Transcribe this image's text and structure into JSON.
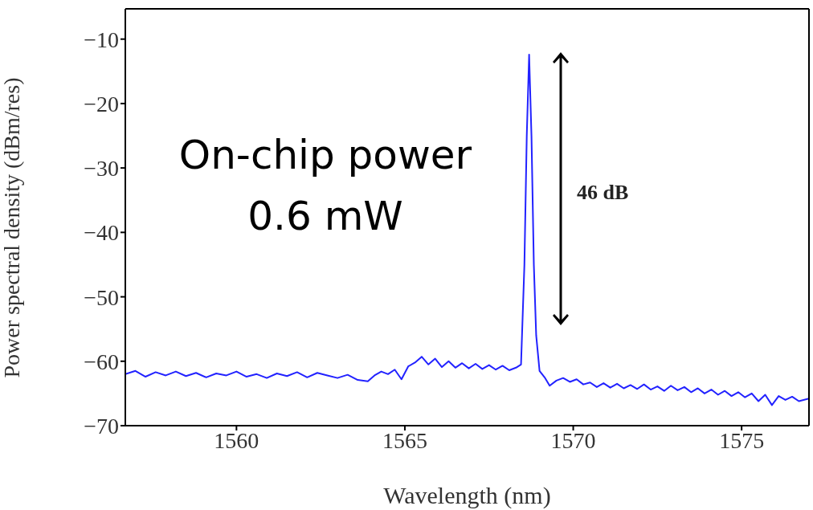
{
  "chart_data": {
    "type": "line",
    "xlabel": "Wavelength (nm)",
    "ylabel": "Power spectral density (dBm/res)",
    "xlim": [
      1556.7,
      1577
    ],
    "xticks": [
      1560,
      1565,
      1570,
      1575
    ],
    "ylim": [
      -70,
      -5.3
    ],
    "yticks": [
      -70,
      -60,
      -50,
      -40,
      -30,
      -20,
      -10
    ],
    "grid": false,
    "legend": false,
    "marker": "none",
    "line_style": "solid",
    "annotations": [
      "On-chip power 0.6 mW",
      "46 dB"
    ],
    "series": [
      {
        "color": "#2222ff",
        "x": [
          1556.7,
          1557.0,
          1557.3,
          1557.6,
          1557.9,
          1558.2,
          1558.5,
          1558.8,
          1559.1,
          1559.4,
          1559.7,
          1560.0,
          1560.3,
          1560.6,
          1560.9,
          1561.2,
          1561.5,
          1561.8,
          1562.1,
          1562.4,
          1562.7,
          1563.0,
          1563.3,
          1563.6,
          1563.9,
          1564.1,
          1564.3,
          1564.5,
          1564.7,
          1564.9,
          1565.1,
          1565.3,
          1565.5,
          1565.7,
          1565.9,
          1566.1,
          1566.3,
          1566.5,
          1566.7,
          1566.9,
          1567.1,
          1567.3,
          1567.5,
          1567.7,
          1567.9,
          1568.1,
          1568.3,
          1568.45,
          1568.55,
          1568.62,
          1568.69,
          1568.76,
          1568.83,
          1568.9,
          1569.0,
          1569.15,
          1569.3,
          1569.5,
          1569.7,
          1569.9,
          1570.1,
          1570.3,
          1570.5,
          1570.7,
          1570.9,
          1571.1,
          1571.3,
          1571.5,
          1571.7,
          1571.9,
          1572.1,
          1572.3,
          1572.5,
          1572.7,
          1572.9,
          1573.1,
          1573.3,
          1573.5,
          1573.7,
          1573.9,
          1574.1,
          1574.3,
          1574.5,
          1574.7,
          1574.9,
          1575.1,
          1575.3,
          1575.5,
          1575.7,
          1575.9,
          1576.1,
          1576.3,
          1576.5,
          1576.7,
          1577.0
        ],
        "values": [
          -62.0,
          -61.5,
          -62.4,
          -61.7,
          -62.2,
          -61.6,
          -62.3,
          -61.8,
          -62.5,
          -61.9,
          -62.2,
          -61.6,
          -62.4,
          -62.0,
          -62.6,
          -61.9,
          -62.3,
          -61.7,
          -62.5,
          -61.8,
          -62.2,
          -62.6,
          -62.1,
          -62.9,
          -63.1,
          -62.2,
          -61.6,
          -62.0,
          -61.3,
          -62.8,
          -60.8,
          -60.2,
          -59.3,
          -60.5,
          -59.6,
          -60.9,
          -60.0,
          -61.0,
          -60.3,
          -61.1,
          -60.4,
          -61.2,
          -60.6,
          -61.3,
          -60.7,
          -61.4,
          -61.0,
          -60.5,
          -45,
          -25,
          -12.4,
          -25,
          -45,
          -56,
          -61.5,
          -62.5,
          -63.8,
          -63.0,
          -62.6,
          -63.2,
          -62.8,
          -63.6,
          -63.3,
          -64.0,
          -63.4,
          -64.1,
          -63.5,
          -64.2,
          -63.7,
          -64.3,
          -63.6,
          -64.4,
          -63.9,
          -64.6,
          -63.8,
          -64.5,
          -64.0,
          -64.8,
          -64.2,
          -65.0,
          -64.4,
          -65.2,
          -64.6,
          -65.4,
          -64.8,
          -65.6,
          -65.0,
          -66.2,
          -65.2,
          -66.8,
          -65.4,
          -66.0,
          -65.5,
          -66.2,
          -65.8
        ]
      }
    ]
  }
}
